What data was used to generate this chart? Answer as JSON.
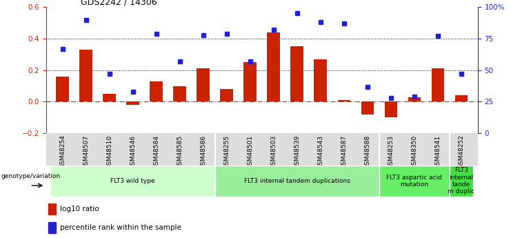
{
  "title": "GDS2242 / 14306",
  "samples": [
    "GSM48254",
    "GSM48507",
    "GSM48510",
    "GSM48546",
    "GSM48584",
    "GSM48585",
    "GSM48586",
    "GSM48255",
    "GSM48501",
    "GSM48503",
    "GSM48539",
    "GSM48543",
    "GSM48587",
    "GSM48588",
    "GSM48253",
    "GSM48350",
    "GSM48541",
    "GSM48252"
  ],
  "log10_ratio": [
    0.16,
    0.33,
    0.05,
    -0.02,
    0.13,
    0.1,
    0.21,
    0.08,
    0.25,
    0.44,
    0.35,
    0.27,
    0.01,
    -0.08,
    -0.1,
    0.03,
    0.21,
    0.04
  ],
  "percentile_rank": [
    67,
    90,
    47,
    33,
    79,
    57,
    78,
    79,
    57,
    82,
    95,
    88,
    87,
    37,
    28,
    29,
    77,
    47
  ],
  "bar_color": "#cc2200",
  "dot_color": "#2222cc",
  "zero_line_color": "#cc2200",
  "ylim_left": [
    -0.2,
    0.6
  ],
  "ylim_right": [
    0,
    100
  ],
  "yticks_left": [
    -0.2,
    0.0,
    0.2,
    0.4,
    0.6
  ],
  "yticks_right": [
    0,
    25,
    50,
    75,
    100
  ],
  "ytick_labels_right": [
    "0",
    "25",
    "50",
    "75",
    "100%"
  ],
  "dotted_lines": [
    0.2,
    0.4
  ],
  "groups": [
    {
      "label": "FLT3 wild type",
      "start": 0,
      "end": 7,
      "color": "#ccffcc"
    },
    {
      "label": "FLT3 internal tandem duplications",
      "start": 7,
      "end": 14,
      "color": "#99ee99"
    },
    {
      "label": "FLT3 aspartic acid\nmutation",
      "start": 14,
      "end": 17,
      "color": "#66ee66"
    },
    {
      "label": "FLT3\ninternal\ntande\nm duplic",
      "start": 17,
      "end": 18,
      "color": "#44dd44"
    }
  ],
  "legend_bar_label": "log10 ratio",
  "legend_dot_label": "percentile rank within the sample",
  "genotype_label": "genotype/variation"
}
